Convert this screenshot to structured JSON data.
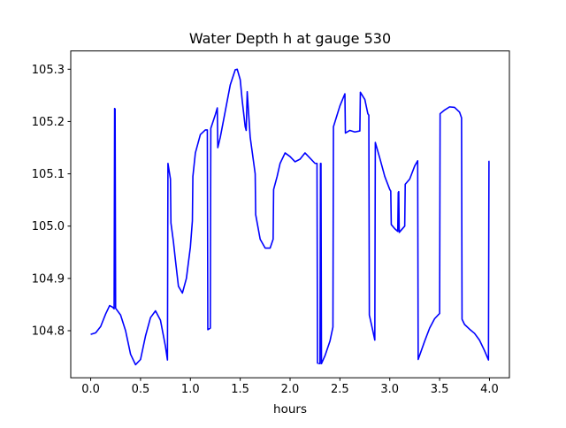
{
  "chart_data": {
    "type": "line",
    "title": "Water Depth h at gauge 530",
    "xlabel": "hours",
    "ylabel": "",
    "xlim": [
      -0.2,
      4.2
    ],
    "ylim": [
      104.71,
      105.335
    ],
    "xticks": [
      {
        "value": 0.0,
        "label": "0.0"
      },
      {
        "value": 0.5,
        "label": "0.5"
      },
      {
        "value": 1.0,
        "label": "1.0"
      },
      {
        "value": 1.5,
        "label": "1.5"
      },
      {
        "value": 2.0,
        "label": "2.0"
      },
      {
        "value": 2.5,
        "label": "2.5"
      },
      {
        "value": 3.0,
        "label": "3.0"
      },
      {
        "value": 3.5,
        "label": "3.5"
      },
      {
        "value": 4.0,
        "label": "4.0"
      }
    ],
    "yticks": [
      {
        "value": 104.8,
        "label": "104.8"
      },
      {
        "value": 104.9,
        "label": "104.9"
      },
      {
        "value": 105.0,
        "label": "105.0"
      },
      {
        "value": 105.1,
        "label": "105.1"
      },
      {
        "value": 105.2,
        "label": "105.2"
      },
      {
        "value": 105.3,
        "label": "105.3"
      }
    ],
    "grid": false,
    "series": [
      {
        "color": "#0000ff",
        "points": [
          [
            0.0,
            104.793
          ],
          [
            0.05,
            104.796
          ],
          [
            0.1,
            104.808
          ],
          [
            0.15,
            104.832
          ],
          [
            0.19,
            104.848
          ],
          [
            0.22,
            104.845
          ],
          [
            0.235,
            104.842
          ],
          [
            0.24,
            105.225
          ],
          [
            0.245,
            105.224
          ],
          [
            0.25,
            104.843
          ],
          [
            0.3,
            104.83
          ],
          [
            0.35,
            104.8
          ],
          [
            0.4,
            104.755
          ],
          [
            0.45,
            104.735
          ],
          [
            0.5,
            104.745
          ],
          [
            0.55,
            104.79
          ],
          [
            0.6,
            104.825
          ],
          [
            0.65,
            104.838
          ],
          [
            0.7,
            104.82
          ],
          [
            0.75,
            104.77
          ],
          [
            0.77,
            104.744
          ],
          [
            0.775,
            105.12
          ],
          [
            0.8,
            105.09
          ],
          [
            0.805,
            105.006
          ],
          [
            0.83,
            104.97
          ],
          [
            0.85,
            104.935
          ],
          [
            0.88,
            104.885
          ],
          [
            0.92,
            104.872
          ],
          [
            0.96,
            104.9
          ],
          [
            1.0,
            104.96
          ],
          [
            1.02,
            105.01
          ],
          [
            1.025,
            105.095
          ],
          [
            1.05,
            105.14
          ],
          [
            1.1,
            105.175
          ],
          [
            1.15,
            105.184
          ],
          [
            1.17,
            105.184
          ],
          [
            1.175,
            104.802
          ],
          [
            1.2,
            104.805
          ],
          [
            1.205,
            105.187
          ],
          [
            1.25,
            105.213
          ],
          [
            1.27,
            105.226
          ],
          [
            1.275,
            105.15
          ],
          [
            1.3,
            105.17
          ],
          [
            1.35,
            105.22
          ],
          [
            1.4,
            105.27
          ],
          [
            1.45,
            105.299
          ],
          [
            1.47,
            105.3
          ],
          [
            1.5,
            105.28
          ],
          [
            1.52,
            105.24
          ],
          [
            1.55,
            105.19
          ],
          [
            1.56,
            105.183
          ],
          [
            1.57,
            105.257
          ],
          [
            1.6,
            105.17
          ],
          [
            1.65,
            105.1
          ],
          [
            1.655,
            105.022
          ],
          [
            1.7,
            104.975
          ],
          [
            1.75,
            104.958
          ],
          [
            1.8,
            104.958
          ],
          [
            1.83,
            104.975
          ],
          [
            1.835,
            105.07
          ],
          [
            1.87,
            105.095
          ],
          [
            1.9,
            105.12
          ],
          [
            1.95,
            105.14
          ],
          [
            2.0,
            105.133
          ],
          [
            2.05,
            105.123
          ],
          [
            2.1,
            105.128
          ],
          [
            2.15,
            105.14
          ],
          [
            2.2,
            105.13
          ],
          [
            2.25,
            105.12
          ],
          [
            2.27,
            105.12
          ],
          [
            2.275,
            104.738
          ],
          [
            2.3,
            104.737
          ],
          [
            2.305,
            105.12
          ],
          [
            2.31,
            105.12
          ],
          [
            2.315,
            104.737
          ],
          [
            2.35,
            104.752
          ],
          [
            2.4,
            104.78
          ],
          [
            2.43,
            104.807
          ],
          [
            2.435,
            105.19
          ],
          [
            2.5,
            105.23
          ],
          [
            2.55,
            105.253
          ],
          [
            2.555,
            105.178
          ],
          [
            2.6,
            105.183
          ],
          [
            2.65,
            105.18
          ],
          [
            2.7,
            105.182
          ],
          [
            2.705,
            105.256
          ],
          [
            2.75,
            105.242
          ],
          [
            2.78,
            105.215
          ],
          [
            2.79,
            105.212
          ],
          [
            2.795,
            104.83
          ],
          [
            2.83,
            104.8
          ],
          [
            2.85,
            104.782
          ],
          [
            2.855,
            105.16
          ],
          [
            2.9,
            105.13
          ],
          [
            2.95,
            105.095
          ],
          [
            3.0,
            105.07
          ],
          [
            3.01,
            105.067
          ],
          [
            3.015,
            105.003
          ],
          [
            3.05,
            104.995
          ],
          [
            3.08,
            104.99
          ],
          [
            3.085,
            105.064
          ],
          [
            3.09,
            105.066
          ],
          [
            3.095,
            104.988
          ],
          [
            3.15,
            105.0
          ],
          [
            3.155,
            105.08
          ],
          [
            3.2,
            105.09
          ],
          [
            3.25,
            105.115
          ],
          [
            3.28,
            105.125
          ],
          [
            3.285,
            104.745
          ],
          [
            3.35,
            104.78
          ],
          [
            3.4,
            104.805
          ],
          [
            3.45,
            104.823
          ],
          [
            3.5,
            104.833
          ],
          [
            3.505,
            105.215
          ],
          [
            3.55,
            105.222
          ],
          [
            3.6,
            105.228
          ],
          [
            3.65,
            105.227
          ],
          [
            3.7,
            105.218
          ],
          [
            3.72,
            105.207
          ],
          [
            3.725,
            104.822
          ],
          [
            3.75,
            104.812
          ],
          [
            3.8,
            104.803
          ],
          [
            3.85,
            104.795
          ],
          [
            3.9,
            104.782
          ],
          [
            3.95,
            104.762
          ],
          [
            3.99,
            104.744
          ],
          [
            3.995,
            105.124
          ],
          [
            4.0,
            105.124
          ]
        ]
      }
    ]
  }
}
